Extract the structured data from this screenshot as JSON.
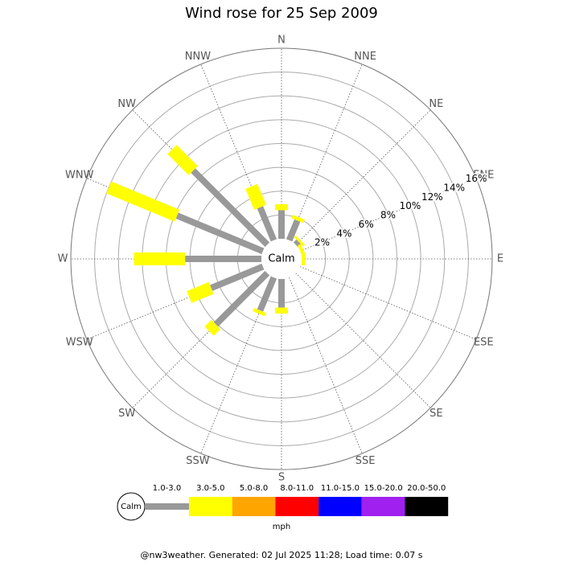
{
  "chart_data": {
    "type": "wind-rose",
    "title": "Wind rose for 25 Sep 2009",
    "categories": [
      "N",
      "NNE",
      "NE",
      "ENE",
      "E",
      "ESE",
      "SE",
      "SSE",
      "S",
      "SSW",
      "SW",
      "WSW",
      "W",
      "WNW",
      "NW",
      "NNW"
    ],
    "series": [
      {
        "name": "1.0-3.0",
        "color": "#999999",
        "values": [
          2.4,
          1.8,
          0.35,
          0,
          0,
          0,
          0,
          0,
          2.4,
          3.0,
          6.1,
          4.7,
          6.4,
          7.8,
          8.8,
          3.0
        ]
      },
      {
        "name": "3.0-5.0",
        "color": "#ffff00",
        "values": [
          0.5,
          0.3,
          0.2,
          0.3,
          0.3,
          0,
          0,
          0,
          0.5,
          0.3,
          0.8,
          2.0,
          4.3,
          6.2,
          2.5,
          1.9
        ]
      },
      {
        "name": "5.0-8.0",
        "color": "#ffa500",
        "values": [
          0,
          0,
          0,
          0,
          0,
          0,
          0,
          0,
          0,
          0,
          0,
          0,
          0,
          0,
          0,
          0
        ]
      },
      {
        "name": "8.0-11.0",
        "color": "#ff0000",
        "values": [
          0,
          0,
          0,
          0,
          0,
          0,
          0,
          0,
          0,
          0,
          0,
          0,
          0,
          0,
          0,
          0
        ]
      },
      {
        "name": "11.0-15.0",
        "color": "#0000ff",
        "values": [
          0,
          0,
          0,
          0,
          0,
          0,
          0,
          0,
          0,
          0,
          0,
          0,
          0,
          0,
          0,
          0
        ]
      },
      {
        "name": "15.0-20.0",
        "color": "#a020f0",
        "values": [
          0,
          0,
          0,
          0,
          0,
          0,
          0,
          0,
          0,
          0,
          0,
          0,
          0,
          0,
          0,
          0
        ]
      },
      {
        "name": "20.0-50.0",
        "color": "#000000",
        "values": [
          0,
          0,
          0,
          0,
          0,
          0,
          0,
          0,
          0,
          0,
          0,
          0,
          0,
          0,
          0,
          0
        ]
      }
    ],
    "rlim": [
      0,
      16
    ],
    "rticks": [
      {
        "value": 2,
        "label": "2%"
      },
      {
        "value": 4,
        "label": "4%"
      },
      {
        "value": 6,
        "label": "6%"
      },
      {
        "value": 8,
        "label": "8%"
      },
      {
        "value": 10,
        "label": "10%"
      },
      {
        "value": 12,
        "label": "12%"
      },
      {
        "value": 14,
        "label": "14%"
      },
      {
        "value": 16,
        "label": "16%"
      }
    ],
    "calm_label": "Calm",
    "legend_unit": "mph",
    "footer": "@nw3weather. Generated: 02 Jul 2025 11:28; Load time: 0.07 s"
  }
}
